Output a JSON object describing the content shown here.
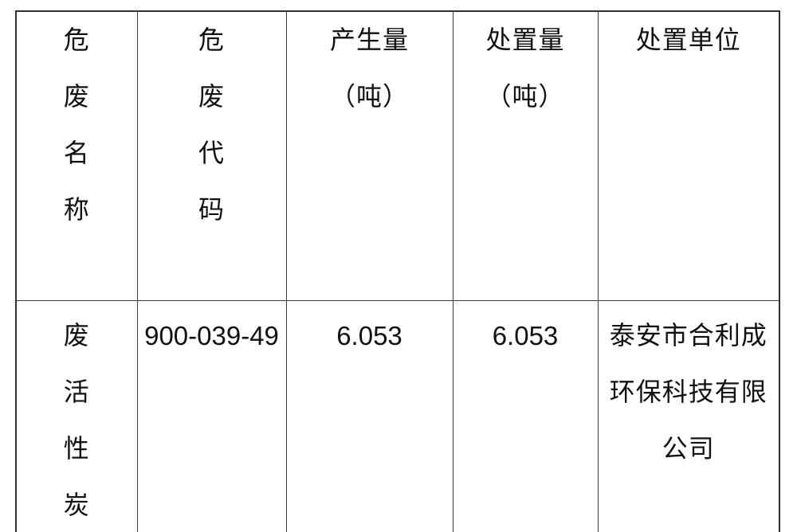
{
  "table": {
    "header": {
      "waste_name_lines": [
        "危",
        "废",
        "名",
        "称"
      ],
      "waste_code_lines": [
        "危",
        "废",
        "代",
        "码"
      ],
      "produced_lines": [
        "产生量",
        "（吨）"
      ],
      "disposed_lines": [
        "处置量",
        "（吨）"
      ],
      "disposal_unit": "处置单位"
    },
    "rows": [
      {
        "name_lines": [
          "废",
          "活",
          "性",
          "炭"
        ],
        "code": "900-039-49",
        "produced": "6.053",
        "disposed": "6.053",
        "unit_lines": [
          "泰安市合利成",
          "环保科技有限",
          "公司"
        ]
      }
    ]
  },
  "colors": {
    "border": "#3a3a3a",
    "text": "#111111",
    "background": "#ffffff"
  }
}
